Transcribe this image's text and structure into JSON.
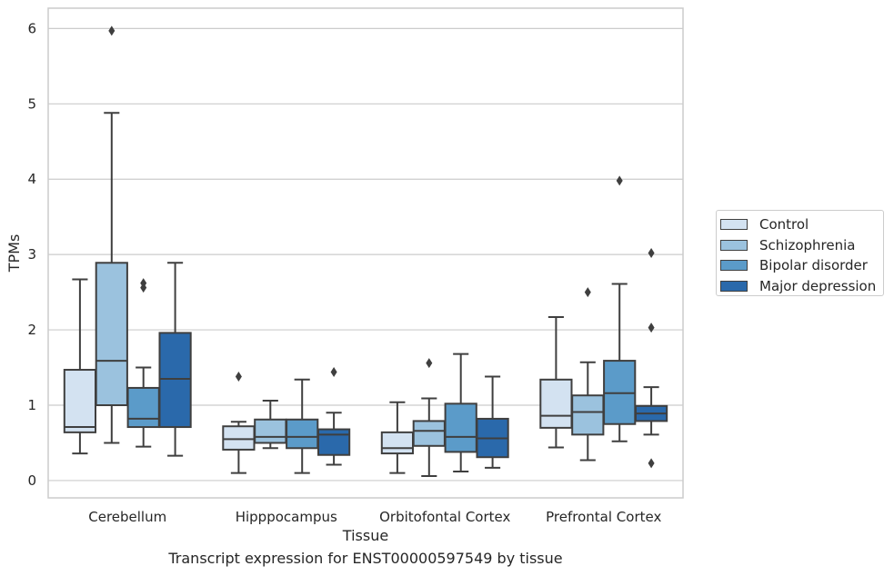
{
  "caption": "Transcript expression for ENST00000597549 by tissue",
  "chart_data": {
    "type": "box",
    "title": "",
    "xlabel": "Tissue",
    "ylabel": "TPMs",
    "ylim": [
      -0.23,
      6.27
    ],
    "yticks": [
      0,
      1,
      2,
      3,
      4,
      5,
      6
    ],
    "grid": true,
    "legend_position": "right-outside",
    "categories": [
      "Cerebellum",
      "Hipppocampus",
      "Orbitofontal Cortex",
      "Prefrontal Cortex"
    ],
    "series": [
      {
        "name": "Control",
        "color": "#d3e2f1",
        "boxes": [
          {
            "whislo": 0.36,
            "q1": 0.64,
            "med": 0.71,
            "q3": 1.47,
            "whishi": 2.67,
            "fliers": []
          },
          {
            "whislo": 0.1,
            "q1": 0.41,
            "med": 0.55,
            "q3": 0.72,
            "whishi": 0.78,
            "fliers": [
              1.38
            ]
          },
          {
            "whislo": 0.1,
            "q1": 0.36,
            "med": 0.43,
            "q3": 0.64,
            "whishi": 1.04,
            "fliers": []
          },
          {
            "whislo": 0.44,
            "q1": 0.7,
            "med": 0.86,
            "q3": 1.34,
            "whishi": 2.17,
            "fliers": []
          }
        ]
      },
      {
        "name": "Schizophrenia",
        "color": "#9bc2de",
        "boxes": [
          {
            "whislo": 0.5,
            "q1": 1.0,
            "med": 1.59,
            "q3": 2.89,
            "whishi": 4.88,
            "fliers": [
              5.97
            ]
          },
          {
            "whislo": 0.43,
            "q1": 0.5,
            "med": 0.58,
            "q3": 0.81,
            "whishi": 1.06,
            "fliers": []
          },
          {
            "whislo": 0.06,
            "q1": 0.46,
            "med": 0.66,
            "q3": 0.79,
            "whishi": 1.09,
            "fliers": [
              1.56
            ]
          },
          {
            "whislo": 0.27,
            "q1": 0.61,
            "med": 0.91,
            "q3": 1.13,
            "whishi": 1.57,
            "fliers": [
              2.5
            ]
          }
        ]
      },
      {
        "name": "Bipolar disorder",
        "color": "#5b9bc9",
        "boxes": [
          {
            "whislo": 0.45,
            "q1": 0.71,
            "med": 0.82,
            "q3": 1.23,
            "whishi": 1.5,
            "fliers": [
              2.56,
              2.62
            ]
          },
          {
            "whislo": 0.1,
            "q1": 0.43,
            "med": 0.58,
            "q3": 0.81,
            "whishi": 1.34,
            "fliers": []
          },
          {
            "whislo": 0.12,
            "q1": 0.38,
            "med": 0.58,
            "q3": 1.02,
            "whishi": 1.68,
            "fliers": []
          },
          {
            "whislo": 0.52,
            "q1": 0.75,
            "med": 1.16,
            "q3": 1.59,
            "whishi": 2.61,
            "fliers": [
              3.98
            ]
          }
        ]
      },
      {
        "name": "Major depression",
        "color": "#2a69ab",
        "boxes": [
          {
            "whislo": 0.33,
            "q1": 0.71,
            "med": 1.35,
            "q3": 1.96,
            "whishi": 2.89,
            "fliers": []
          },
          {
            "whislo": 0.21,
            "q1": 0.34,
            "med": 0.61,
            "q3": 0.68,
            "whishi": 0.9,
            "fliers": [
              1.44
            ]
          },
          {
            "whislo": 0.17,
            "q1": 0.31,
            "med": 0.56,
            "q3": 0.82,
            "whishi": 1.38,
            "fliers": []
          },
          {
            "whislo": 0.61,
            "q1": 0.79,
            "med": 0.89,
            "q3": 0.99,
            "whishi": 1.24,
            "fliers": [
              0.23,
              2.03,
              3.02
            ]
          }
        ]
      }
    ]
  }
}
